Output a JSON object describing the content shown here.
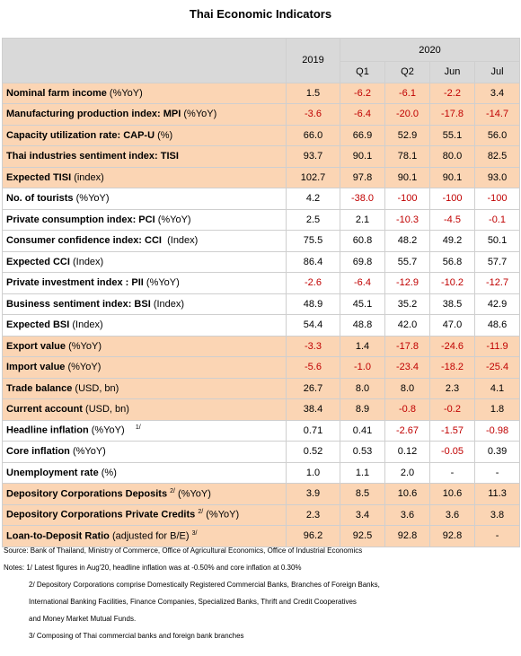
{
  "title": "Thai Economic Indicators",
  "header": {
    "year1": "2019",
    "year2": "2020",
    "periods": [
      "Q1",
      "Q2",
      "Jun",
      "Jul"
    ]
  },
  "rows": [
    {
      "bold": "Nominal farm income",
      "rest": " (%YoY)",
      "sup": "",
      "rest2": "",
      "values": [
        "1.5",
        "-6.2",
        "-6.1",
        "-2.2",
        "3.4"
      ],
      "highlight": true
    },
    {
      "bold": "Manufacturing production index: MPI",
      "rest": " (%YoY)",
      "sup": "",
      "rest2": "",
      "values": [
        "-3.6",
        "-6.4",
        "-20.0",
        "-17.8",
        "-14.7"
      ],
      "highlight": true
    },
    {
      "bold": "Capacity utilization rate: CAP-U",
      "rest": " (%)",
      "sup": "",
      "rest2": "",
      "values": [
        "66.0",
        "66.9",
        "52.9",
        "55.1",
        "56.0"
      ],
      "highlight": true
    },
    {
      "bold": "Thai industries sentiment index: TISI",
      "rest": "",
      "sup": "",
      "rest2": "",
      "values": [
        "93.7",
        "90.1",
        "78.1",
        "80.0",
        "82.5"
      ],
      "highlight": true
    },
    {
      "bold": "Expected TISI",
      "rest": " (index)",
      "sup": "",
      "rest2": "",
      "values": [
        "102.7",
        "97.8",
        "90.1",
        "90.1",
        "93.0"
      ],
      "highlight": true
    },
    {
      "bold": "No. of tourists",
      "rest": " (%YoY)",
      "sup": "",
      "rest2": "",
      "values": [
        "4.2",
        "-38.0",
        "-100",
        "-100",
        "-100"
      ],
      "highlight": false
    },
    {
      "bold": "Private consumption index: PCI",
      "rest": " (%YoY)",
      "sup": "",
      "rest2": "",
      "values": [
        "2.5",
        "2.1",
        "-10.3",
        "-4.5",
        "-0.1"
      ],
      "highlight": false
    },
    {
      "bold": "Consumer confidence index: CCI",
      "rest": "  (Index)",
      "sup": "",
      "rest2": "",
      "values": [
        "75.5",
        "60.8",
        "48.2",
        "49.2",
        "50.1"
      ],
      "highlight": false
    },
    {
      "bold": "Expected CCI",
      "rest": " (Index)",
      "sup": "",
      "rest2": "",
      "values": [
        "86.4",
        "69.8",
        "55.7",
        "56.8",
        "57.7"
      ],
      "highlight": false
    },
    {
      "bold": "Private investment index : PII",
      "rest": " (%YoY)",
      "sup": "",
      "rest2": "",
      "values": [
        "-2.6",
        "-6.4",
        "-12.9",
        "-10.2",
        "-12.7"
      ],
      "highlight": false
    },
    {
      "bold": "Business sentiment index: BSI",
      "rest": " (Index)",
      "sup": "",
      "rest2": "",
      "values": [
        "48.9",
        "45.1",
        "35.2",
        "38.5",
        "42.9"
      ],
      "highlight": false
    },
    {
      "bold": "Expected BSI",
      "rest": " (Index)",
      "sup": "",
      "rest2": "",
      "values": [
        "54.4",
        "48.8",
        "42.0",
        "47.0",
        "48.6"
      ],
      "highlight": false
    },
    {
      "bold": "Export value",
      "rest": " (%YoY)",
      "sup": "",
      "rest2": "",
      "values": [
        "-3.3",
        "1.4",
        "-17.8",
        "-24.6",
        "-11.9"
      ],
      "highlight": true
    },
    {
      "bold": "Import value",
      "rest": " (%YoY)",
      "sup": "",
      "rest2": "",
      "values": [
        "-5.6",
        "-1.0",
        "-23.4",
        "-18.2",
        "-25.4"
      ],
      "highlight": true
    },
    {
      "bold": "Trade balance",
      "rest": " (USD, bn)",
      "sup": "",
      "rest2": "",
      "values": [
        "26.7",
        "8.0",
        "8.0",
        "2.3",
        "4.1"
      ],
      "highlight": true
    },
    {
      "bold": "Current account",
      "rest": " (USD, bn)",
      "sup": "",
      "rest2": "",
      "values": [
        "38.4",
        "8.9",
        "-0.8",
        "-0.2",
        "1.8"
      ],
      "highlight": true
    },
    {
      "bold": "Headline inflation",
      "rest": " (%YoY)    ",
      "sup": "1/",
      "rest2": "",
      "values": [
        "0.71",
        "0.41",
        "-2.67",
        "-1.57",
        "-0.98"
      ],
      "highlight": false
    },
    {
      "bold": "Core inflation",
      "rest": " (%YoY)",
      "sup": "",
      "rest2": "",
      "values": [
        "0.52",
        "0.53",
        "0.12",
        "-0.05",
        "0.39"
      ],
      "highlight": false
    },
    {
      "bold": "Unemployment rate",
      "rest": " (%)",
      "sup": "",
      "rest2": "",
      "values": [
        "1.0",
        "1.1",
        "2.0",
        "-",
        "-"
      ],
      "highlight": false
    },
    {
      "bold": "Depository Corporations Deposits",
      "rest": " ",
      "sup": "2/",
      "rest2": " (%YoY)",
      "values": [
        "3.9",
        "8.5",
        "10.6",
        "10.6",
        "11.3"
      ],
      "highlight": true
    },
    {
      "bold": "Depository Corporations Private Credits",
      "rest": " ",
      "sup": "2/",
      "rest2": " (%YoY)",
      "values": [
        "2.3",
        "3.4",
        "3.6",
        "3.6",
        "3.8"
      ],
      "highlight": true
    },
    {
      "bold": "Loan-to-Deposit Ratio",
      "rest": " (adjusted for B/E) ",
      "sup": "3/",
      "rest2": "",
      "values": [
        "96.2",
        "92.5",
        "92.8",
        "92.8",
        "-"
      ],
      "highlight": true
    }
  ],
  "notes": {
    "source": "Source: Bank of Thailand, Ministry of Commerce, Office of Agricultural Economics, Office of Industrial Economics",
    "note1": "Notes:  1/ Latest figures in Aug'20, headline inflation was at -0.50% and core inflation at 0.30%",
    "note2a": "2/ Depository Corporations comprise Domestically Registered Commercial Banks, Branches of Foreign Banks,",
    "note2b": "International Banking Facilities, Finance Companies, Specialized Banks, Thrift and Credit Cooperatives",
    "note2c": "and Money Market Mutual Funds.",
    "note3": "3/ Composing of Thai commercial banks and foreign bank branches"
  },
  "colors": {
    "highlight_row": "#fbd5b4",
    "negative_value": "#c00000",
    "header_bg": "#d9d9d9"
  }
}
